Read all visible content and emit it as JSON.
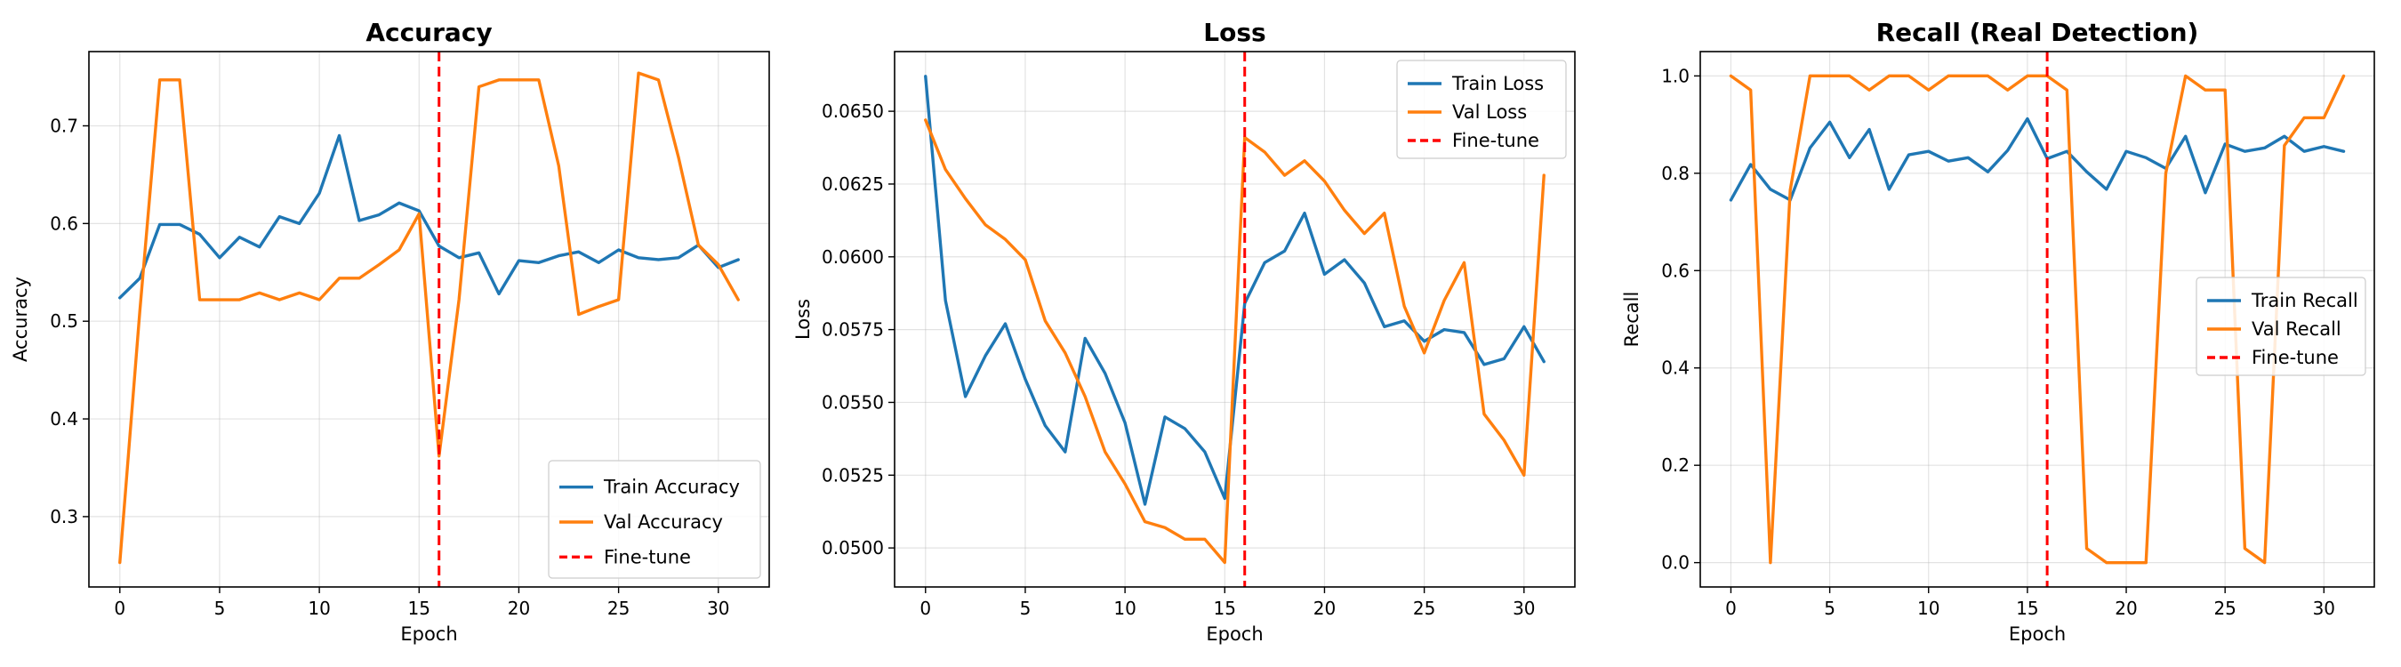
{
  "colors": {
    "train": "#1f77b4",
    "val": "#ff7f0e",
    "finetune": "#ff0000"
  },
  "chart_data": [
    {
      "type": "line",
      "title": "Accuracy",
      "xlabel": "Epoch",
      "ylabel": "Accuracy",
      "xlim": [
        -1.55,
        32.55
      ],
      "ylim": [
        0.228,
        0.776
      ],
      "xticks": [
        0,
        5,
        10,
        15,
        20,
        25,
        30
      ],
      "yticks": [
        0.3,
        0.4,
        0.5,
        0.6,
        0.7
      ],
      "ytick_labels": [
        "0.3",
        "0.4",
        "0.5",
        "0.6",
        "0.7"
      ],
      "grid": true,
      "legend_position": "lower-right",
      "finetune_epoch": 16,
      "finetune_label": "Fine-tune",
      "x": [
        0,
        1,
        2,
        3,
        4,
        5,
        6,
        7,
        8,
        9,
        10,
        11,
        12,
        13,
        14,
        15,
        16,
        17,
        18,
        19,
        20,
        21,
        22,
        23,
        24,
        25,
        26,
        27,
        28,
        29,
        30,
        31
      ],
      "series": [
        {
          "name": "Train Accuracy",
          "role": "train",
          "values": [
            0.524,
            0.544,
            0.599,
            0.599,
            0.589,
            0.565,
            0.586,
            0.576,
            0.607,
            0.6,
            0.631,
            0.69,
            0.603,
            0.609,
            0.621,
            0.613,
            0.577,
            0.565,
            0.57,
            0.528,
            0.562,
            0.56,
            0.567,
            0.571,
            0.56,
            0.573,
            0.565,
            0.563,
            0.565,
            0.578,
            0.555,
            0.563
          ]
        },
        {
          "name": "Val Accuracy",
          "role": "val",
          "values": [
            0.253,
            0.51,
            0.747,
            0.747,
            0.522,
            0.522,
            0.522,
            0.529,
            0.522,
            0.529,
            0.522,
            0.544,
            0.544,
            0.558,
            0.573,
            0.61,
            0.362,
            0.522,
            0.74,
            0.747,
            0.747,
            0.747,
            0.659,
            0.507,
            0.515,
            0.522,
            0.754,
            0.747,
            0.668,
            0.578,
            0.558,
            0.522
          ]
        }
      ]
    },
    {
      "type": "line",
      "title": "Loss",
      "xlabel": "Epoch",
      "ylabel": "Loss",
      "xlim": [
        -1.55,
        32.55
      ],
      "ylim": [
        0.04866,
        0.06705
      ],
      "xticks": [
        0,
        5,
        10,
        15,
        20,
        25,
        30
      ],
      "yticks": [
        0.05,
        0.0525,
        0.055,
        0.0575,
        0.06,
        0.0625,
        0.065
      ],
      "ytick_labels": [
        "0.0500",
        "0.0525",
        "0.0550",
        "0.0575",
        "0.0600",
        "0.0625",
        "0.0650"
      ],
      "grid": true,
      "legend_position": "top-right",
      "finetune_epoch": 16,
      "finetune_label": "Fine-tune",
      "x": [
        0,
        1,
        2,
        3,
        4,
        5,
        6,
        7,
        8,
        9,
        10,
        11,
        12,
        13,
        14,
        15,
        16,
        17,
        18,
        19,
        20,
        21,
        22,
        23,
        24,
        25,
        26,
        27,
        28,
        29,
        30,
        31
      ],
      "series": [
        {
          "name": "Train Loss",
          "role": "train",
          "values": [
            0.0662,
            0.0585,
            0.0552,
            0.0566,
            0.0577,
            0.0558,
            0.0542,
            0.0533,
            0.0572,
            0.056,
            0.0543,
            0.0515,
            0.0545,
            0.0541,
            0.0533,
            0.0517,
            0.0584,
            0.0598,
            0.0602,
            0.0615,
            0.0594,
            0.0599,
            0.0591,
            0.0576,
            0.0578,
            0.0571,
            0.0575,
            0.0574,
            0.0563,
            0.0565,
            0.0576,
            0.0564
          ]
        },
        {
          "name": "Val Loss",
          "role": "val",
          "values": [
            0.0647,
            0.063,
            0.062,
            0.0611,
            0.0606,
            0.0599,
            0.0578,
            0.0567,
            0.0552,
            0.0533,
            0.0522,
            0.0509,
            0.0507,
            0.0503,
            0.0503,
            0.0495,
            0.0641,
            0.0636,
            0.0628,
            0.0633,
            0.0626,
            0.0616,
            0.0608,
            0.0615,
            0.0583,
            0.0567,
            0.0585,
            0.0598,
            0.0546,
            0.0537,
            0.0525,
            0.0628
          ]
        }
      ]
    },
    {
      "type": "line",
      "title": "Recall (Real Detection)",
      "xlabel": "Epoch",
      "ylabel": "Recall",
      "xlim": [
        -1.55,
        32.55
      ],
      "ylim": [
        -0.05,
        1.05
      ],
      "xticks": [
        0,
        5,
        10,
        15,
        20,
        25,
        30
      ],
      "yticks": [
        0.0,
        0.2,
        0.4,
        0.6,
        0.8,
        1.0
      ],
      "ytick_labels": [
        "0.0",
        "0.2",
        "0.4",
        "0.6",
        "0.8",
        "1.0"
      ],
      "grid": true,
      "legend_position": "center-right",
      "finetune_epoch": 16,
      "finetune_label": "Fine-tune",
      "x": [
        0,
        1,
        2,
        3,
        4,
        5,
        6,
        7,
        8,
        9,
        10,
        11,
        12,
        13,
        14,
        15,
        16,
        17,
        18,
        19,
        20,
        21,
        22,
        23,
        24,
        25,
        26,
        27,
        28,
        29,
        30,
        31
      ],
      "series": [
        {
          "name": "Train Recall",
          "role": "train",
          "values": [
            0.745,
            0.818,
            0.767,
            0.745,
            0.852,
            0.905,
            0.832,
            0.89,
            0.767,
            0.838,
            0.845,
            0.825,
            0.832,
            0.803,
            0.847,
            0.912,
            0.83,
            0.845,
            0.803,
            0.767,
            0.845,
            0.832,
            0.81,
            0.876,
            0.76,
            0.86,
            0.845,
            0.852,
            0.876,
            0.845,
            0.855,
            0.845
          ]
        },
        {
          "name": "Val Recall",
          "role": "val",
          "values": [
            1.0,
            0.971,
            0.0,
            0.765,
            1.0,
            1.0,
            1.0,
            0.971,
            1.0,
            1.0,
            0.971,
            1.0,
            1.0,
            1.0,
            0.971,
            1.0,
            1.0,
            0.971,
            0.029,
            0.0,
            0.0,
            0.0,
            0.8,
            1.0,
            0.971,
            0.971,
            0.029,
            0.0,
            0.857,
            0.914,
            0.914,
            1.0
          ]
        }
      ]
    }
  ]
}
